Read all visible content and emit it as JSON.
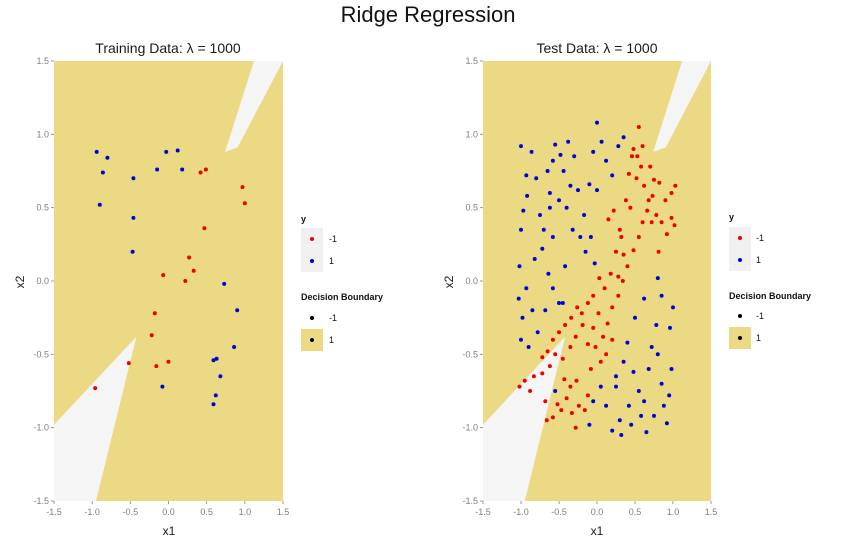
{
  "suptitle": "Ridge Regression",
  "colors": {
    "class_neg": "#ee0000",
    "class_pos": "#0000dd",
    "region_pos": "#ecd983",
    "region_neg": "#f5f5f5",
    "legend_key_bg": "#f0f0f0"
  },
  "legend": {
    "y_title": "y",
    "y_labels": [
      "-1",
      "1"
    ],
    "boundary_title": "Decision Boundary",
    "boundary_labels": [
      "-1",
      "1"
    ]
  },
  "chart_data": [
    {
      "type": "scatter",
      "title": "Training Data:  λ = 1000",
      "xlabel": "x1",
      "ylabel": "x2",
      "xlim": [
        -1.5,
        1.5
      ],
      "ylim": [
        -1.5,
        1.5
      ],
      "xticks": [
        "-1.5",
        "-1.0",
        "-0.5",
        "0.0",
        "0.5",
        "1.0",
        "1.5"
      ],
      "yticks": [
        "-1.5",
        "-1.0",
        "-0.5",
        "0.0",
        "0.5",
        "1.0",
        "1.5"
      ],
      "grid": false,
      "boundary": {
        "pos_polygons": [
          [
            [
              -1.5,
              1.5
            ],
            [
              1.12,
              1.5
            ],
            [
              0.74,
              0.88
            ],
            [
              1.5,
              1.02
            ],
            [
              1.5,
              -1.5
            ],
            [
              -0.95,
              -1.5
            ],
            [
              -0.42,
              -0.38
            ],
            [
              -1.5,
              -0.98
            ]
          ],
          [
            [
              1.5,
              1.02
            ],
            [
              0.5,
              0.51
            ],
            [
              1.5,
              1.5
            ]
          ]
        ]
      },
      "series": [
        {
          "name": "-1",
          "points": [
            [
              -0.96,
              -0.73
            ],
            [
              -0.52,
              -0.56
            ],
            [
              -0.22,
              -0.37
            ],
            [
              -0.18,
              -0.22
            ],
            [
              -0.16,
              -0.58
            ],
            [
              -0.07,
              0.04
            ],
            [
              0.0,
              -0.55
            ],
            [
              0.22,
              0.0
            ],
            [
              0.27,
              0.16
            ],
            [
              0.33,
              0.07
            ],
            [
              0.42,
              0.74
            ],
            [
              0.47,
              0.36
            ],
            [
              0.49,
              0.76
            ],
            [
              0.97,
              0.64
            ],
            [
              1.0,
              0.53
            ]
          ]
        },
        {
          "name": "1",
          "points": [
            [
              -0.94,
              0.88
            ],
            [
              -0.9,
              0.52
            ],
            [
              -0.86,
              0.74
            ],
            [
              -0.8,
              0.84
            ],
            [
              -0.46,
              0.7
            ],
            [
              -0.46,
              0.43
            ],
            [
              -0.47,
              0.2
            ],
            [
              -0.15,
              0.76
            ],
            [
              -0.08,
              -0.72
            ],
            [
              -0.03,
              0.88
            ],
            [
              0.12,
              0.89
            ],
            [
              0.18,
              0.76
            ],
            [
              0.59,
              -0.54
            ],
            [
              0.59,
              -0.84
            ],
            [
              0.62,
              -0.78
            ],
            [
              0.63,
              -0.53
            ],
            [
              0.68,
              -0.65
            ],
            [
              0.73,
              -0.02
            ],
            [
              0.86,
              -0.45
            ],
            [
              0.9,
              -0.2
            ]
          ]
        }
      ]
    },
    {
      "type": "scatter",
      "title": "Test Data:  λ = 1000",
      "xlabel": "x1",
      "ylabel": "x2",
      "xlim": [
        -1.5,
        1.5
      ],
      "ylim": [
        -1.5,
        1.5
      ],
      "xticks": [
        "-1.5",
        "-1.0",
        "-0.5",
        "0.0",
        "0.5",
        "1.0",
        "1.5"
      ],
      "yticks": [
        "-1.5",
        "-1.0",
        "-0.5",
        "0.0",
        "0.5",
        "1.0",
        "1.5"
      ],
      "grid": false,
      "boundary": {
        "pos_polygons": [
          [
            [
              -1.5,
              1.5
            ],
            [
              1.12,
              1.5
            ],
            [
              0.74,
              0.88
            ],
            [
              1.5,
              1.02
            ],
            [
              1.5,
              -1.5
            ],
            [
              -0.95,
              -1.5
            ],
            [
              -0.42,
              -0.38
            ],
            [
              -1.5,
              -0.98
            ]
          ],
          [
            [
              1.5,
              1.02
            ],
            [
              0.5,
              0.51
            ],
            [
              1.5,
              1.5
            ]
          ]
        ]
      },
      "series": [
        {
          "name": "-1",
          "points": [
            [
              -1.02,
              -0.72
            ],
            [
              -0.95,
              -0.68
            ],
            [
              -0.88,
              -0.75
            ],
            [
              -0.83,
              -0.65
            ],
            [
              -0.72,
              -0.63
            ],
            [
              -0.62,
              -0.58
            ],
            [
              -0.55,
              -0.5
            ],
            [
              -0.68,
              -0.82
            ],
            [
              -0.66,
              -0.95
            ],
            [
              -0.58,
              -0.93
            ],
            [
              -0.52,
              -0.84
            ],
            [
              -0.47,
              -0.88
            ],
            [
              -0.4,
              -0.8
            ],
            [
              -0.33,
              -0.9
            ],
            [
              -0.24,
              -0.85
            ],
            [
              -0.16,
              -0.88
            ],
            [
              -0.12,
              -0.78
            ],
            [
              -0.28,
              -1.0
            ],
            [
              -0.43,
              -0.67
            ],
            [
              -0.35,
              -0.72
            ],
            [
              -0.27,
              -0.68
            ],
            [
              -0.45,
              -0.53
            ],
            [
              -0.35,
              -0.45
            ],
            [
              -0.28,
              -0.38
            ],
            [
              -0.19,
              -0.3
            ],
            [
              -0.12,
              -0.43
            ],
            [
              -0.05,
              -0.32
            ],
            [
              0.02,
              -0.22
            ],
            [
              0.08,
              -0.38
            ],
            [
              0.14,
              -0.29
            ],
            [
              0.2,
              -0.18
            ],
            [
              0.28,
              -0.1
            ],
            [
              0.34,
              0.0
            ],
            [
              0.4,
              0.1
            ],
            [
              0.48,
              0.21
            ],
            [
              0.55,
              0.3
            ],
            [
              0.6,
              0.4
            ],
            [
              0.66,
              0.48
            ],
            [
              0.73,
              0.58
            ],
            [
              0.78,
              0.45
            ],
            [
              0.85,
              0.4
            ],
            [
              0.92,
              0.32
            ],
            [
              0.98,
              0.43
            ],
            [
              1.02,
              0.38
            ],
            [
              0.9,
              0.55
            ],
            [
              0.98,
              0.6
            ],
            [
              1.03,
              0.65
            ],
            [
              0.82,
              0.67
            ],
            [
              0.75,
              0.69
            ],
            [
              0.7,
              0.78
            ],
            [
              0.6,
              0.92
            ],
            [
              0.53,
              0.85
            ],
            [
              0.48,
              0.9
            ],
            [
              0.55,
              1.05
            ],
            [
              0.52,
              0.7
            ],
            [
              0.44,
              0.5
            ],
            [
              0.38,
              0.55
            ],
            [
              0.32,
              0.3
            ],
            [
              0.25,
              0.2
            ],
            [
              0.18,
              0.05
            ],
            [
              0.1,
              -0.05
            ],
            [
              0.03,
              0.02
            ],
            [
              -0.05,
              -0.1
            ],
            [
              -0.12,
              -0.15
            ],
            [
              -0.2,
              -0.22
            ],
            [
              -0.26,
              -0.18
            ],
            [
              -0.34,
              -0.25
            ],
            [
              -0.42,
              -0.3
            ],
            [
              -0.5,
              -0.35
            ],
            [
              -0.58,
              -0.4
            ],
            [
              -0.65,
              -0.48
            ],
            [
              -0.72,
              -0.52
            ],
            [
              0.42,
              0.73
            ],
            [
              0.46,
              0.85
            ],
            [
              0.58,
              0.78
            ],
            [
              0.62,
              0.65
            ],
            [
              0.68,
              0.55
            ],
            [
              0.72,
              0.4
            ],
            [
              0.81,
              0.2
            ],
            [
              0.35,
              0.18
            ],
            [
              0.28,
              0.03
            ],
            [
              0.2,
              -0.4
            ],
            [
              0.12,
              -0.5
            ],
            [
              0.05,
              -0.55
            ],
            [
              -0.02,
              -0.45
            ],
            [
              -0.08,
              -0.6
            ],
            [
              0.15,
              0.42
            ],
            [
              0.22,
              0.48
            ],
            [
              0.3,
              0.35
            ]
          ]
        },
        {
          "name": "1",
          "points": [
            [
              -1.0,
              0.92
            ],
            [
              -0.93,
              0.72
            ],
            [
              -0.97,
              0.48
            ],
            [
              -1.0,
              0.35
            ],
            [
              -1.02,
              0.1
            ],
            [
              -1.03,
              -0.12
            ],
            [
              -0.98,
              -0.25
            ],
            [
              -1.0,
              -0.4
            ],
            [
              -0.93,
              -0.05
            ],
            [
              -0.92,
              0.58
            ],
            [
              -0.86,
              0.88
            ],
            [
              -0.8,
              0.7
            ],
            [
              -0.75,
              0.45
            ],
            [
              -0.72,
              0.22
            ],
            [
              -0.82,
              0.15
            ],
            [
              -0.85,
              -0.2
            ],
            [
              -0.78,
              -0.35
            ],
            [
              -0.68,
              -0.2
            ],
            [
              -0.64,
              0.05
            ],
            [
              -0.58,
              0.3
            ],
            [
              -0.5,
              0.55
            ],
            [
              -0.44,
              0.75
            ],
            [
              -0.38,
              0.95
            ],
            [
              -0.3,
              0.85
            ],
            [
              -0.25,
              0.62
            ],
            [
              -0.17,
              0.45
            ],
            [
              -0.1,
              0.66
            ],
            [
              -0.05,
              0.88
            ],
            [
              0.0,
              1.08
            ],
            [
              0.06,
              0.95
            ],
            [
              0.12,
              0.82
            ],
            [
              0.2,
              0.72
            ],
            [
              0.28,
              0.92
            ],
            [
              0.35,
              0.98
            ],
            [
              -0.55,
              0.93
            ],
            [
              -0.48,
              0.86
            ],
            [
              -0.58,
              0.82
            ],
            [
              -0.65,
              0.75
            ],
            [
              -0.62,
              0.6
            ],
            [
              -0.7,
              0.35
            ],
            [
              -0.4,
              0.5
            ],
            [
              -0.32,
              0.35
            ],
            [
              -0.22,
              0.3
            ],
            [
              -0.15,
              0.2
            ],
            [
              -0.08,
              0.3
            ],
            [
              0.0,
              0.62
            ],
            [
              -0.03,
              0.12
            ],
            [
              -0.58,
              -0.05
            ],
            [
              -0.5,
              -0.15
            ],
            [
              -0.9,
              -0.45
            ],
            [
              -0.55,
              -0.75
            ],
            [
              -0.45,
              -0.15
            ],
            [
              0.35,
              -0.55
            ],
            [
              0.4,
              -0.42
            ],
            [
              0.48,
              -0.62
            ],
            [
              0.55,
              -0.75
            ],
            [
              0.62,
              -0.82
            ],
            [
              0.68,
              -0.6
            ],
            [
              0.72,
              -0.45
            ],
            [
              0.78,
              -0.3
            ],
            [
              0.8,
              -0.5
            ],
            [
              0.85,
              -0.7
            ],
            [
              0.88,
              -0.85
            ],
            [
              0.92,
              -0.97
            ],
            [
              0.95,
              -0.78
            ],
            [
              0.98,
              -0.6
            ],
            [
              0.96,
              -0.32
            ],
            [
              1.0,
              -0.18
            ],
            [
              0.85,
              -0.1
            ],
            [
              0.8,
              0.02
            ],
            [
              0.62,
              -0.12
            ],
            [
              0.5,
              -0.25
            ],
            [
              0.42,
              -0.85
            ],
            [
              0.3,
              -0.95
            ],
            [
              0.2,
              -1.02
            ],
            [
              0.12,
              -0.85
            ],
            [
              0.05,
              -0.72
            ],
            [
              -0.05,
              -0.82
            ],
            [
              -0.1,
              -0.98
            ],
            [
              0.25,
              -0.72
            ],
            [
              0.32,
              -1.05
            ],
            [
              0.45,
              -0.98
            ],
            [
              0.58,
              -0.92
            ],
            [
              0.65,
              -1.03
            ],
            [
              0.75,
              -0.92
            ],
            [
              -0.42,
              0.1
            ],
            [
              -0.62,
              0.5
            ],
            [
              -0.35,
              0.65
            ],
            [
              0.25,
              -0.65
            ]
          ]
        }
      ]
    }
  ]
}
